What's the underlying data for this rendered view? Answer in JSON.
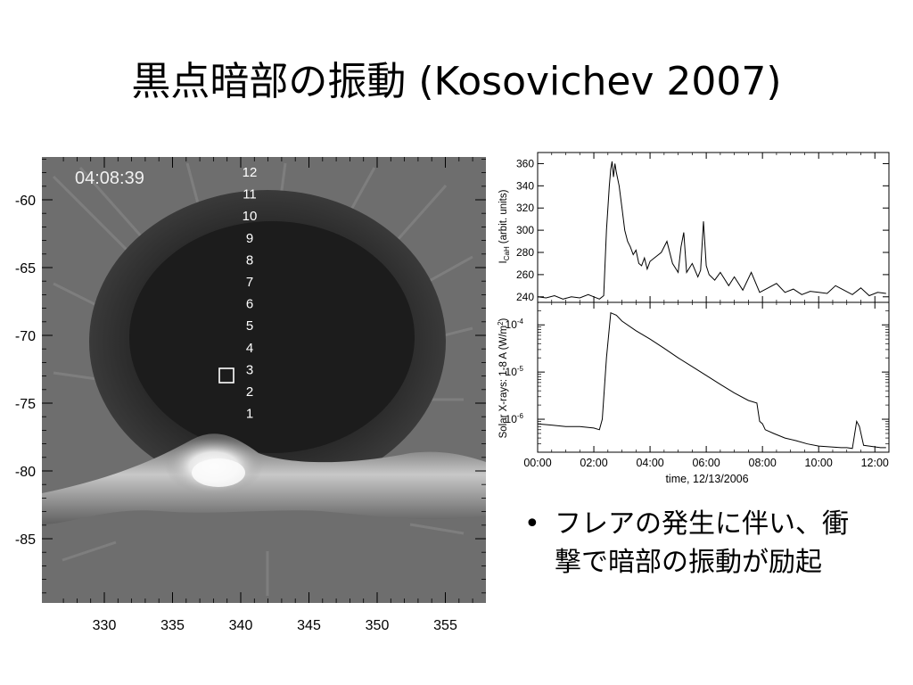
{
  "slide": {
    "title": "黒点暗部の振動 (Kosovichev 2007)",
    "bullet_text": "フレアの発生に伴い、衝撃で暗部の振動が励起",
    "bullet_glyph": "•"
  },
  "image": {
    "timestamp": "04:08:39",
    "location_labels": [
      "12",
      "11",
      "10",
      "9",
      "8",
      "7",
      "6",
      "5",
      "4",
      "3",
      "2",
      "1"
    ],
    "marker_label": "3",
    "x_ticks": [
      330,
      335,
      340,
      345,
      350,
      355
    ],
    "y_ticks": [
      -60,
      -65,
      -70,
      -75,
      -80,
      -85
    ]
  },
  "chart_data": [
    {
      "type": "line",
      "ylabel": "I_CaH (arbit. units)",
      "ylabel_main": "I",
      "ylabel_sub": "CaH",
      "ylabel_rest": "(arbit. units)",
      "xlim": [
        0,
        12.5
      ],
      "ylim": [
        235,
        370
      ],
      "y_ticks": [
        240,
        260,
        280,
        300,
        320,
        340,
        360
      ],
      "x": [
        0.0,
        0.3,
        0.6,
        0.9,
        1.2,
        1.5,
        1.8,
        2.0,
        2.2,
        2.35,
        2.45,
        2.55,
        2.6,
        2.65,
        2.7,
        2.75,
        2.8,
        2.9,
        3.0,
        3.1,
        3.2,
        3.3,
        3.4,
        3.5,
        3.6,
        3.7,
        3.8,
        3.9,
        4.0,
        4.2,
        4.4,
        4.6,
        4.8,
        5.0,
        5.1,
        5.2,
        5.3,
        5.5,
        5.7,
        5.8,
        5.9,
        6.0,
        6.1,
        6.3,
        6.5,
        6.8,
        7.0,
        7.3,
        7.6,
        7.9,
        8.2,
        8.5,
        8.8,
        9.1,
        9.4,
        9.7,
        10.0,
        10.3,
        10.6,
        10.9,
        11.2,
        11.5,
        11.8,
        12.1,
        12.4
      ],
      "values": [
        240,
        239,
        241,
        238,
        240,
        239,
        242,
        240,
        238,
        241,
        300,
        340,
        355,
        362,
        348,
        360,
        352,
        340,
        320,
        300,
        290,
        285,
        278,
        282,
        270,
        268,
        275,
        265,
        272,
        276,
        280,
        290,
        270,
        262,
        285,
        298,
        262,
        270,
        258,
        264,
        308,
        268,
        260,
        255,
        262,
        250,
        258,
        246,
        262,
        244,
        248,
        252,
        244,
        247,
        242,
        245,
        244,
        243,
        250,
        246,
        242,
        248,
        241,
        244,
        243
      ]
    },
    {
      "type": "line",
      "ylabel": "Solar X-rays: 1-8 A  (W/m²)",
      "ylabel_text": "Solar X-rays: 1-8 A  (W/m",
      "ylabel_sup": "2",
      "ylabel_close": ")",
      "xlabel": "time, 12/13/2006",
      "log_scale": true,
      "ylim": [
        2e-07,
        0.0003
      ],
      "x_tick_labels": [
        "00:00",
        "02:00",
        "04:00",
        "06:00",
        "08:00",
        "10:00",
        "12:00"
      ],
      "x_tick_values": [
        0,
        2,
        4,
        6,
        8,
        10,
        12
      ],
      "y_ticks": [
        {
          "value": 0.0001,
          "base": "10",
          "exp": "-4"
        },
        {
          "value": 1e-05,
          "base": "10",
          "exp": "-5"
        },
        {
          "value": 1e-06,
          "base": "10",
          "exp": "-6"
        }
      ],
      "x": [
        0.0,
        0.5,
        1.0,
        1.5,
        2.0,
        2.2,
        2.3,
        2.45,
        2.6,
        2.8,
        3.0,
        3.5,
        4.0,
        4.5,
        5.0,
        5.5,
        6.0,
        6.5,
        7.0,
        7.5,
        7.8,
        7.9,
        8.0,
        8.1,
        8.4,
        8.8,
        9.2,
        9.6,
        10.0,
        10.4,
        10.8,
        11.0,
        11.2,
        11.35,
        11.45,
        11.6,
        11.8,
        12.0,
        12.2,
        12.4
      ],
      "values": [
        8e-07,
        7.5e-07,
        7e-07,
        7e-07,
        6.5e-07,
        6e-07,
        1e-06,
        2e-05,
        0.00018,
        0.00016,
        0.00012,
        7.5e-05,
        5e-05,
        3.2e-05,
        2e-05,
        1.3e-05,
        8.5e-06,
        5.5e-06,
        3.6e-06,
        2.5e-06,
        2.2e-06,
        9e-07,
        8e-07,
        6e-07,
        5e-07,
        4e-07,
        3.5e-07,
        3e-07,
        2.7e-07,
        2.6e-07,
        2.5e-07,
        2.5e-07,
        2.4e-07,
        9e-07,
        7e-07,
        2.8e-07,
        2.7e-07,
        2.6e-07,
        2.5e-07,
        2.5e-07
      ]
    }
  ]
}
